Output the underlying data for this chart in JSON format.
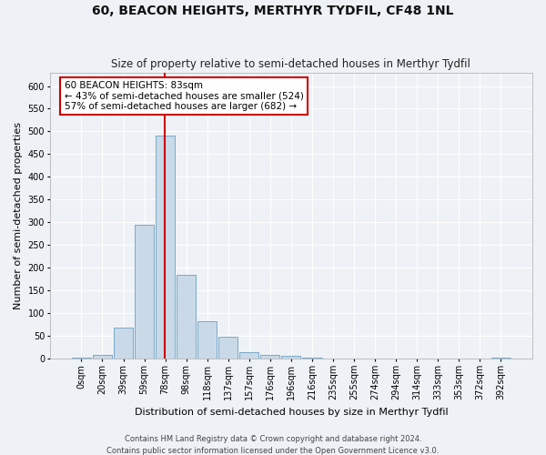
{
  "title": "60, BEACON HEIGHTS, MERTHYR TYDFIL, CF48 1NL",
  "subtitle": "Size of property relative to semi-detached houses in Merthyr Tydfil",
  "xlabel": "Distribution of semi-detached houses by size in Merthyr Tydfil",
  "ylabel": "Number of semi-detached properties",
  "footer_line1": "Contains HM Land Registry data © Crown copyright and database right 2024.",
  "footer_line2": "Contains public sector information licensed under the Open Government Licence v3.0.",
  "bin_labels": [
    "0sqm",
    "20sqm",
    "39sqm",
    "59sqm",
    "78sqm",
    "98sqm",
    "118sqm",
    "137sqm",
    "157sqm",
    "176sqm",
    "196sqm",
    "216sqm",
    "235sqm",
    "255sqm",
    "274sqm",
    "294sqm",
    "314sqm",
    "333sqm",
    "353sqm",
    "372sqm",
    "392sqm"
  ],
  "bar_values": [
    3,
    8,
    68,
    295,
    490,
    185,
    83,
    48,
    15,
    9,
    7,
    2,
    1,
    0,
    0,
    0,
    0,
    0,
    0,
    0,
    2
  ],
  "bar_color": "#c9d9e8",
  "bar_edgecolor": "#6a9fc0",
  "annotation_text_line1": "60 BEACON HEIGHTS: 83sqm",
  "annotation_text_line2": "← 43% of semi-detached houses are smaller (524)",
  "annotation_text_line3": "57% of semi-detached houses are larger (682) →",
  "annotation_box_facecolor": "#ffffff",
  "annotation_border_color": "#cc0000",
  "red_line_color": "#cc0000",
  "red_line_bin_index": 4,
  "ylim": [
    0,
    630
  ],
  "yticks": [
    0,
    50,
    100,
    150,
    200,
    250,
    300,
    350,
    400,
    450,
    500,
    550,
    600
  ],
  "plot_bg_color": "#eef2f7",
  "fig_bg_color": "#eef2f7",
  "grid_color": "#ffffff",
  "title_fontsize": 10,
  "subtitle_fontsize": 8.5,
  "ylabel_fontsize": 8,
  "xlabel_fontsize": 8,
  "tick_fontsize": 7,
  "annotation_fontsize": 7.5,
  "footer_fontsize": 6
}
